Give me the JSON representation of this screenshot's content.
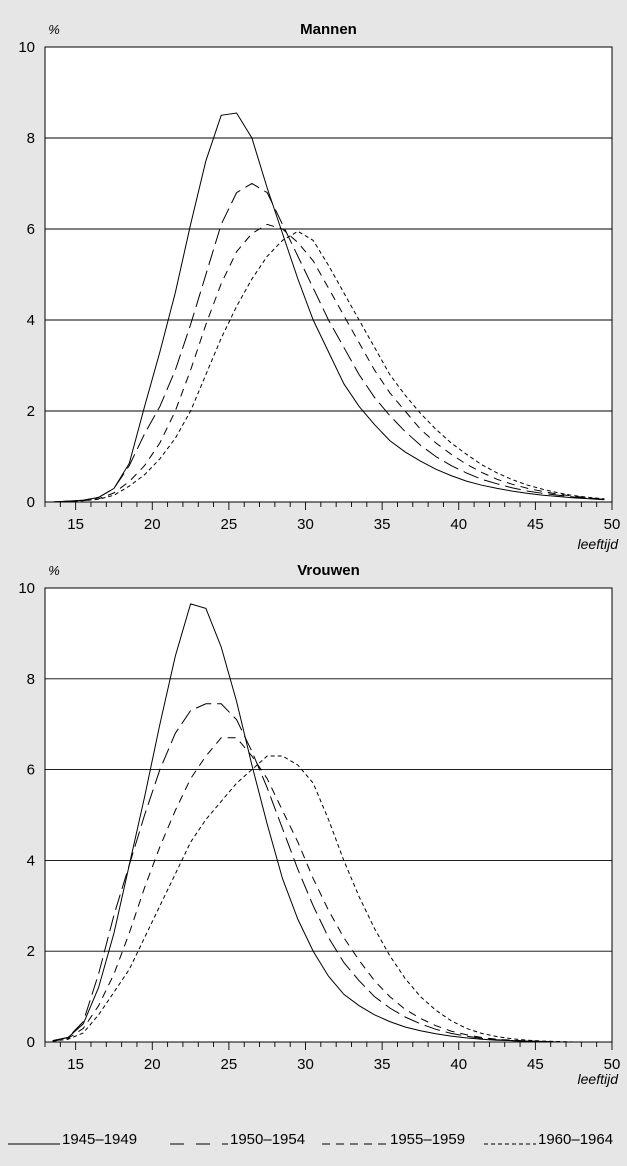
{
  "chart_data": [
    {
      "type": "line",
      "title": "Mannen",
      "ylabel": "%",
      "xlabel": "leeftijd",
      "xlim": [
        13,
        50
      ],
      "ylim": [
        0,
        10
      ],
      "x_ticks": [
        15,
        20,
        25,
        30,
        35,
        40,
        45,
        50
      ],
      "y_ticks": [
        0,
        2,
        4,
        6,
        8,
        10
      ],
      "grid": "horizontal",
      "series": [
        {
          "name": "1945–1949",
          "x": [
            13.5,
            14.5,
            15.5,
            16.5,
            17.5,
            18.5,
            19.5,
            20.5,
            21.5,
            22.5,
            23.5,
            24.5,
            25.5,
            26.5,
            27.5,
            28.5,
            29.5,
            30.5,
            31.5,
            32.5,
            33.5,
            34.5,
            35.5,
            36.5,
            37.5,
            38.5,
            39.5,
            40.5,
            41.5,
            42.5,
            43.5,
            44.5,
            45.5,
            46.5,
            47.5,
            48.5,
            49.5
          ],
          "values": [
            0.0,
            0.02,
            0.04,
            0.1,
            0.3,
            0.85,
            2.1,
            3.3,
            4.6,
            6.1,
            7.5,
            8.5,
            8.55,
            8.0,
            6.9,
            5.9,
            4.9,
            4.0,
            3.3,
            2.6,
            2.1,
            1.7,
            1.35,
            1.1,
            0.9,
            0.72,
            0.58,
            0.46,
            0.37,
            0.3,
            0.24,
            0.19,
            0.15,
            0.12,
            0.09,
            0.07,
            0.05
          ]
        },
        {
          "name": "1950–1954",
          "x": [
            13.5,
            14.5,
            15.5,
            16.5,
            17.5,
            18.5,
            19.5,
            20.5,
            21.5,
            22.5,
            23.5,
            24.5,
            25.5,
            26.5,
            27.5,
            28.5,
            29.5,
            30.5,
            31.5,
            32.5,
            33.5,
            34.5,
            35.5,
            36.5,
            37.5,
            38.5,
            39.5,
            40.5,
            41.5,
            42.5,
            43.5,
            44.5,
            45.5,
            46.5,
            47.5,
            48.5,
            49.5
          ],
          "values": [
            0.0,
            0.02,
            0.04,
            0.1,
            0.3,
            0.8,
            1.5,
            2.1,
            2.9,
            3.9,
            5.0,
            6.1,
            6.8,
            7.0,
            6.8,
            6.1,
            5.4,
            4.7,
            4.0,
            3.4,
            2.8,
            2.3,
            1.9,
            1.55,
            1.25,
            1.0,
            0.8,
            0.64,
            0.5,
            0.4,
            0.31,
            0.24,
            0.19,
            0.15,
            0.11,
            0.08,
            0.06
          ]
        },
        {
          "name": "1955–1959",
          "x": [
            13.5,
            14.5,
            15.5,
            16.5,
            17.5,
            18.5,
            19.5,
            20.5,
            21.5,
            22.5,
            23.5,
            24.5,
            25.5,
            26.5,
            27.5,
            28.5,
            29.5,
            30.5,
            31.5,
            32.5,
            33.5,
            34.5,
            35.5,
            36.5,
            37.5,
            38.5,
            39.5,
            40.5,
            41.5,
            42.5,
            43.5,
            44.5,
            45.5,
            46.5,
            47.5,
            48.5,
            49.5
          ],
          "values": [
            0.0,
            0.01,
            0.03,
            0.07,
            0.2,
            0.45,
            0.8,
            1.3,
            2.0,
            2.9,
            3.9,
            4.8,
            5.5,
            5.9,
            6.1,
            6.0,
            5.7,
            5.3,
            4.7,
            4.1,
            3.5,
            2.9,
            2.4,
            2.0,
            1.6,
            1.3,
            1.05,
            0.83,
            0.65,
            0.5,
            0.39,
            0.3,
            0.23,
            0.17,
            0.13,
            0.09,
            0.06
          ]
        },
        {
          "name": "1960–1964",
          "x": [
            13.5,
            14.5,
            15.5,
            16.5,
            17.5,
            18.5,
            19.5,
            20.5,
            21.5,
            22.5,
            23.5,
            24.5,
            25.5,
            26.5,
            27.5,
            28.5,
            29.5,
            30.5,
            31.5,
            32.5,
            33.5,
            34.5,
            35.5,
            36.5,
            37.5,
            38.5,
            39.5,
            40.5,
            41.5,
            42.5,
            43.5,
            44.5,
            45.5,
            46.5,
            47.5,
            48.5,
            49.5
          ],
          "values": [
            0.0,
            0.01,
            0.03,
            0.06,
            0.15,
            0.35,
            0.6,
            0.95,
            1.4,
            2.0,
            2.8,
            3.6,
            4.3,
            4.9,
            5.4,
            5.75,
            5.95,
            5.75,
            5.2,
            4.6,
            4.0,
            3.4,
            2.8,
            2.35,
            1.95,
            1.6,
            1.3,
            1.05,
            0.82,
            0.64,
            0.49,
            0.37,
            0.28,
            0.2,
            0.14,
            0.1,
            0.07
          ]
        }
      ]
    },
    {
      "type": "line",
      "title": "Vrouwen",
      "ylabel": "%",
      "xlabel": "leeftijd",
      "xlim": [
        13,
        50
      ],
      "ylim": [
        0,
        10
      ],
      "x_ticks": [
        15,
        20,
        25,
        30,
        35,
        40,
        45,
        50
      ],
      "y_ticks": [
        0,
        2,
        4,
        6,
        8,
        10
      ],
      "grid": "horizontal",
      "series": [
        {
          "name": "1945–1949",
          "x": [
            13.5,
            14.5,
            15.5,
            16.5,
            17.5,
            18.5,
            19.5,
            20.5,
            21.5,
            22.5,
            23.5,
            24.5,
            25.5,
            26.5,
            27.5,
            28.5,
            29.5,
            30.5,
            31.5,
            32.5,
            33.5,
            34.5,
            35.5,
            36.5,
            37.5,
            38.5,
            39.5,
            40.5,
            41.5,
            42.5,
            43.5,
            44.5,
            45.5,
            46.5,
            47.5,
            48.5,
            49.5
          ],
          "values": [
            0.03,
            0.1,
            0.4,
            1.2,
            2.4,
            3.9,
            5.4,
            7.0,
            8.5,
            9.65,
            9.55,
            8.7,
            7.5,
            6.1,
            4.8,
            3.6,
            2.7,
            2.0,
            1.45,
            1.05,
            0.8,
            0.6,
            0.45,
            0.33,
            0.25,
            0.18,
            0.13,
            0.09,
            0.06,
            0.04,
            0.03,
            0.02,
            0.01,
            0.0,
            0.0,
            0.0,
            0.0
          ]
        },
        {
          "name": "1950–1954",
          "x": [
            13.5,
            14.5,
            15.5,
            16.5,
            17.5,
            18.5,
            19.5,
            20.5,
            21.5,
            22.5,
            23.5,
            24.5,
            25.5,
            26.5,
            27.5,
            28.5,
            29.5,
            30.5,
            31.5,
            32.5,
            33.5,
            34.5,
            35.5,
            36.5,
            37.5,
            38.5,
            39.5,
            40.5,
            41.5,
            42.5,
            43.5,
            44.5,
            45.5,
            46.5,
            47.5,
            48.5,
            49.5
          ],
          "values": [
            0.03,
            0.1,
            0.45,
            1.5,
            2.8,
            3.9,
            5.0,
            6.0,
            6.8,
            7.3,
            7.45,
            7.45,
            7.1,
            6.4,
            5.6,
            4.7,
            3.8,
            3.0,
            2.3,
            1.75,
            1.35,
            1.0,
            0.75,
            0.55,
            0.4,
            0.28,
            0.19,
            0.13,
            0.08,
            0.05,
            0.03,
            0.02,
            0.01,
            0.0,
            0.0,
            0.0,
            0.0
          ]
        },
        {
          "name": "1955–1959",
          "x": [
            13.5,
            14.5,
            15.5,
            16.5,
            17.5,
            18.5,
            19.5,
            20.5,
            21.5,
            22.5,
            23.5,
            24.5,
            25.5,
            26.5,
            27.5,
            28.5,
            29.5,
            30.5,
            31.5,
            32.5,
            33.5,
            34.5,
            35.5,
            36.5,
            37.5,
            38.5,
            39.5,
            40.5,
            41.5,
            42.5,
            43.5,
            44.5,
            45.5,
            46.5,
            47.5,
            48.5,
            49.5
          ],
          "values": [
            0.02,
            0.08,
            0.3,
            0.8,
            1.5,
            2.4,
            3.4,
            4.3,
            5.1,
            5.8,
            6.3,
            6.7,
            6.7,
            6.3,
            5.8,
            5.1,
            4.4,
            3.6,
            2.9,
            2.3,
            1.8,
            1.35,
            1.0,
            0.72,
            0.52,
            0.36,
            0.24,
            0.16,
            0.1,
            0.06,
            0.04,
            0.02,
            0.01,
            0.0,
            0.0,
            0.0,
            0.0
          ]
        },
        {
          "name": "1960–1964",
          "x": [
            13.5,
            14.5,
            15.5,
            16.5,
            17.5,
            18.5,
            19.5,
            20.5,
            21.5,
            22.5,
            23.5,
            24.5,
            25.5,
            26.5,
            27.5,
            28.5,
            29.5,
            30.5,
            31.5,
            32.5,
            33.5,
            34.5,
            35.5,
            36.5,
            37.5,
            38.5,
            39.5,
            40.5,
            41.5,
            42.5,
            43.5,
            44.5,
            45.5,
            46.5,
            47.5,
            48.5,
            49.5
          ],
          "values": [
            0.02,
            0.06,
            0.2,
            0.6,
            1.1,
            1.6,
            2.3,
            3.0,
            3.7,
            4.4,
            4.9,
            5.3,
            5.7,
            6.0,
            6.3,
            6.3,
            6.1,
            5.7,
            4.9,
            4.0,
            3.2,
            2.5,
            1.9,
            1.4,
            1.0,
            0.7,
            0.47,
            0.3,
            0.19,
            0.12,
            0.07,
            0.04,
            0.02,
            0.01,
            0.0,
            0.0,
            0.0
          ]
        }
      ]
    }
  ],
  "legend": {
    "placement": "bottom",
    "items": [
      {
        "label": "1945–1949",
        "style": "solid"
      },
      {
        "label": "1950–1954",
        "style": "long-dash"
      },
      {
        "label": "1955–1959",
        "style": "dash"
      },
      {
        "label": "1960–1964",
        "style": "dotted-dash"
      }
    ]
  },
  "colors": {
    "background": "#e6e6e7",
    "plot_area": "#ffffff",
    "lines": "#000000"
  }
}
